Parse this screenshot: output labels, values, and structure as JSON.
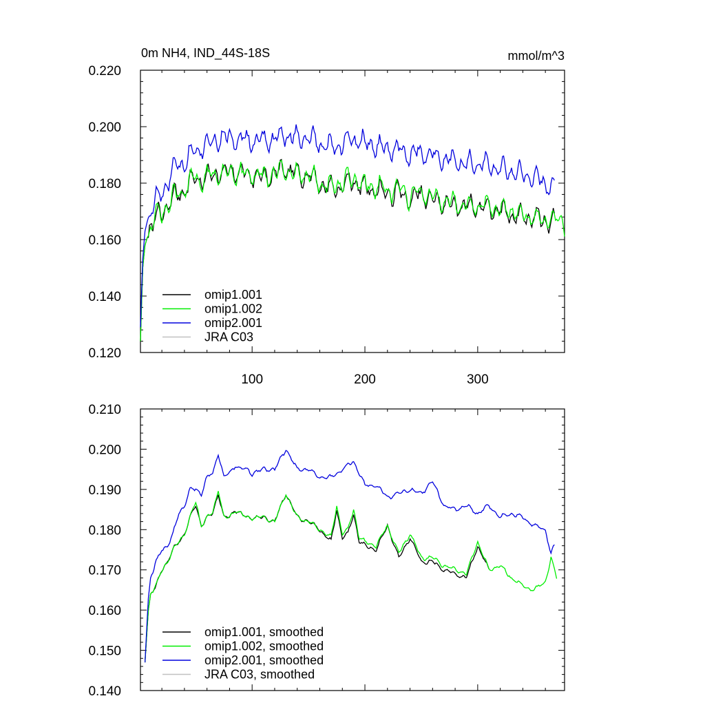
{
  "chart_data": [
    {
      "type": "line",
      "title": "0m NH4, IND_44S-18S",
      "units": "mmol/m^3",
      "xlim": [
        1,
        377
      ],
      "ylim": [
        0.12,
        0.22
      ],
      "yticks": [
        "0.120",
        "0.140",
        "0.160",
        "0.180",
        "0.200",
        "0.220"
      ],
      "xticks": [
        "100",
        "200",
        "300"
      ],
      "legend": {
        "position": "bottom-left"
      },
      "series": [
        {
          "name": "omip1.001",
          "color": "#000000",
          "x": [
            1,
            3,
            5,
            8,
            10,
            12,
            15,
            20,
            25,
            30,
            35,
            40,
            45,
            50,
            55,
            60,
            65,
            70,
            75,
            80,
            85,
            90,
            95,
            100,
            110,
            120,
            130,
            140,
            150,
            160,
            170,
            180,
            190,
            200,
            210,
            220,
            230,
            240,
            250,
            260,
            270,
            280,
            290,
            300,
            310,
            320,
            330,
            340,
            350,
            360,
            368
          ],
          "y": [
            0.124,
            0.15,
            0.158,
            0.162,
            0.165,
            0.166,
            0.168,
            0.169,
            0.172,
            0.175,
            0.176,
            0.178,
            0.18,
            0.182,
            0.181,
            0.182,
            0.183,
            0.184,
            0.183,
            0.184,
            0.184,
            0.184,
            0.183,
            0.183,
            0.182,
            0.183,
            0.185,
            0.183,
            0.183,
            0.18,
            0.178,
            0.179,
            0.181,
            0.178,
            0.178,
            0.176,
            0.177,
            0.174,
            0.176,
            0.174,
            0.173,
            0.172,
            0.172,
            0.172,
            0.171,
            0.17,
            0.169,
            0.168,
            0.168,
            0.167,
            0.166
          ]
        },
        {
          "name": "omip1.002",
          "color": "#00ee00",
          "x": [
            1,
            3,
            5,
            8,
            10,
            12,
            15,
            20,
            25,
            30,
            35,
            40,
            45,
            50,
            55,
            60,
            65,
            70,
            75,
            80,
            85,
            90,
            95,
            100,
            110,
            120,
            130,
            140,
            150,
            160,
            170,
            180,
            190,
            200,
            210,
            220,
            230,
            240,
            250,
            260,
            270,
            280,
            290,
            300,
            310,
            320,
            330,
            340,
            350,
            360,
            370,
            377
          ],
          "y": [
            0.124,
            0.15,
            0.158,
            0.162,
            0.165,
            0.166,
            0.168,
            0.169,
            0.172,
            0.175,
            0.176,
            0.178,
            0.18,
            0.182,
            0.181,
            0.182,
            0.183,
            0.184,
            0.183,
            0.184,
            0.184,
            0.184,
            0.183,
            0.183,
            0.182,
            0.183,
            0.185,
            0.183,
            0.183,
            0.18,
            0.179,
            0.18,
            0.182,
            0.179,
            0.179,
            0.177,
            0.178,
            0.175,
            0.177,
            0.175,
            0.174,
            0.173,
            0.172,
            0.172,
            0.172,
            0.171,
            0.17,
            0.169,
            0.168,
            0.167,
            0.167,
            0.166
          ]
        },
        {
          "name": "omip2.001",
          "color": "#0000dd",
          "x": [
            1,
            3,
            5,
            8,
            10,
            12,
            15,
            20,
            25,
            30,
            35,
            40,
            45,
            50,
            55,
            60,
            65,
            70,
            75,
            80,
            85,
            90,
            95,
            100,
            110,
            120,
            130,
            140,
            150,
            160,
            170,
            180,
            190,
            200,
            210,
            220,
            230,
            240,
            250,
            260,
            270,
            280,
            290,
            300,
            310,
            320,
            330,
            340,
            350,
            360,
            368
          ],
          "y": [
            0.129,
            0.153,
            0.163,
            0.168,
            0.17,
            0.172,
            0.174,
            0.176,
            0.18,
            0.185,
            0.186,
            0.188,
            0.19,
            0.192,
            0.193,
            0.194,
            0.195,
            0.196,
            0.196,
            0.196,
            0.196,
            0.196,
            0.195,
            0.195,
            0.195,
            0.196,
            0.197,
            0.196,
            0.196,
            0.194,
            0.193,
            0.194,
            0.196,
            0.194,
            0.193,
            0.192,
            0.192,
            0.19,
            0.191,
            0.19,
            0.189,
            0.188,
            0.187,
            0.187,
            0.186,
            0.185,
            0.184,
            0.183,
            0.182,
            0.18,
            0.178
          ]
        },
        {
          "name": "JRA C03",
          "color": "#c0c0c0",
          "x": [],
          "y": []
        }
      ]
    },
    {
      "type": "line",
      "title": "",
      "units": "",
      "xlim": [
        1,
        377
      ],
      "ylim": [
        0.14,
        0.21
      ],
      "yticks": [
        "0.140",
        "0.150",
        "0.160",
        "0.170",
        "0.180",
        "0.190",
        "0.200",
        "0.210"
      ],
      "xticks": [],
      "legend": {
        "position": "bottom-left"
      },
      "series": [
        {
          "name": "omip1.001, smoothed",
          "color": "#000000",
          "x": [
            5,
            8,
            10,
            15,
            20,
            25,
            30,
            35,
            40,
            45,
            50,
            55,
            60,
            65,
            70,
            75,
            80,
            85,
            90,
            95,
            100,
            110,
            120,
            130,
            140,
            150,
            160,
            170,
            175,
            180,
            185,
            190,
            195,
            200,
            210,
            220,
            230,
            240,
            250,
            260,
            270,
            280,
            290,
            300,
            310
          ],
          "y": [
            0.147,
            0.16,
            0.164,
            0.166,
            0.17,
            0.172,
            0.175,
            0.177,
            0.179,
            0.183,
            0.186,
            0.181,
            0.183,
            0.184,
            0.189,
            0.183,
            0.183,
            0.185,
            0.184,
            0.183,
            0.183,
            0.183,
            0.182,
            0.189,
            0.183,
            0.182,
            0.18,
            0.177,
            0.185,
            0.178,
            0.179,
            0.184,
            0.177,
            0.176,
            0.175,
            0.181,
            0.173,
            0.178,
            0.172,
            0.172,
            0.17,
            0.169,
            0.168,
            0.176,
            0.17
          ]
        },
        {
          "name": "omip1.002, smoothed",
          "color": "#00ee00",
          "x": [
            5,
            8,
            10,
            15,
            20,
            25,
            30,
            35,
            40,
            45,
            50,
            55,
            60,
            65,
            70,
            75,
            80,
            85,
            90,
            95,
            100,
            110,
            120,
            130,
            140,
            150,
            160,
            170,
            175,
            180,
            185,
            190,
            195,
            200,
            210,
            220,
            230,
            240,
            250,
            260,
            270,
            280,
            290,
            300,
            310,
            320,
            330,
            340,
            350,
            360,
            365,
            370
          ],
          "y": [
            0.147,
            0.16,
            0.164,
            0.166,
            0.17,
            0.172,
            0.175,
            0.177,
            0.179,
            0.183,
            0.187,
            0.181,
            0.183,
            0.184,
            0.19,
            0.183,
            0.183,
            0.185,
            0.184,
            0.183,
            0.183,
            0.183,
            0.182,
            0.189,
            0.183,
            0.182,
            0.18,
            0.178,
            0.186,
            0.179,
            0.18,
            0.185,
            0.178,
            0.177,
            0.176,
            0.181,
            0.174,
            0.179,
            0.173,
            0.173,
            0.171,
            0.17,
            0.169,
            0.177,
            0.17,
            0.171,
            0.168,
            0.166,
            0.165,
            0.167,
            0.173,
            0.168
          ]
        },
        {
          "name": "omip2.001, smoothed",
          "color": "#0000dd",
          "x": [
            5,
            8,
            10,
            15,
            20,
            25,
            30,
            35,
            40,
            45,
            50,
            55,
            60,
            65,
            70,
            75,
            80,
            85,
            90,
            95,
            100,
            110,
            120,
            130,
            140,
            150,
            160,
            170,
            180,
            190,
            200,
            210,
            220,
            230,
            240,
            250,
            260,
            270,
            280,
            290,
            300,
            310,
            320,
            330,
            340,
            350,
            360,
            365,
            368
          ],
          "y": [
            0.147,
            0.163,
            0.168,
            0.172,
            0.175,
            0.176,
            0.179,
            0.184,
            0.186,
            0.19,
            0.19,
            0.189,
            0.193,
            0.194,
            0.199,
            0.193,
            0.194,
            0.196,
            0.195,
            0.195,
            0.194,
            0.195,
            0.195,
            0.2,
            0.195,
            0.195,
            0.193,
            0.193,
            0.195,
            0.197,
            0.191,
            0.191,
            0.188,
            0.189,
            0.19,
            0.189,
            0.192,
            0.186,
            0.185,
            0.186,
            0.184,
            0.186,
            0.183,
            0.184,
            0.183,
            0.181,
            0.18,
            0.174,
            0.176
          ]
        },
        {
          "name": "JRA C03, smoothed",
          "color": "#c0c0c0",
          "x": [],
          "y": []
        }
      ]
    }
  ]
}
